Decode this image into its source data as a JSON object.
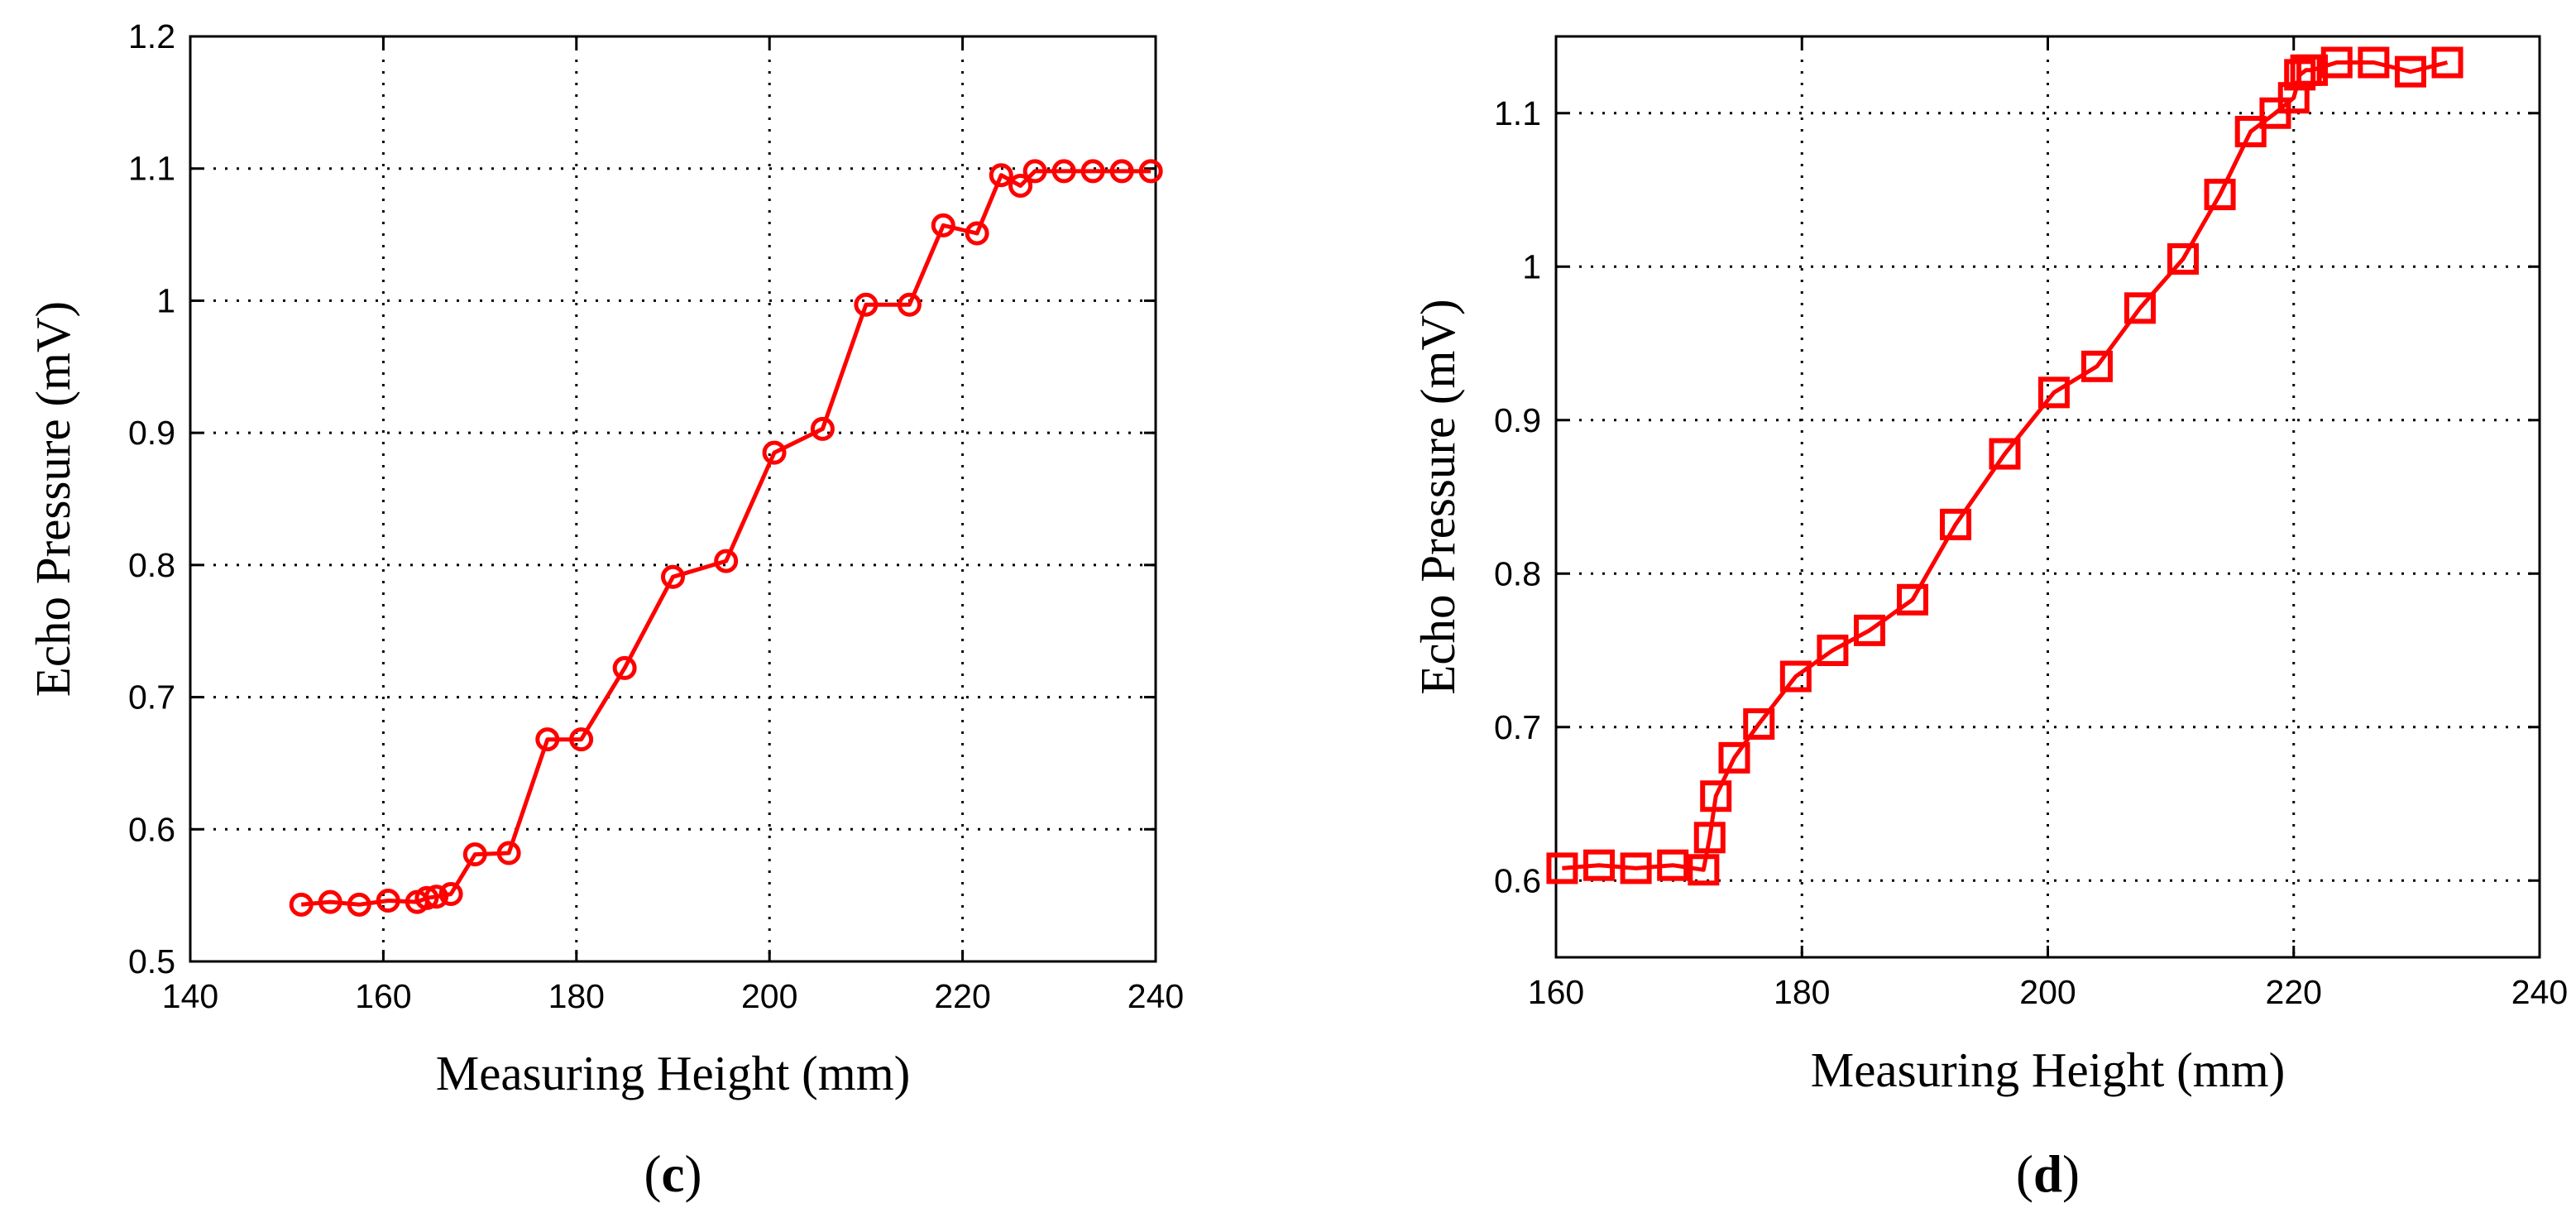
{
  "chart_data": [
    {
      "id": "c",
      "panel_label": "c",
      "type": "line",
      "marker": "circle",
      "color": "#ff0000",
      "grid": true,
      "xlabel": "Measuring Height (mm)",
      "ylabel": "Echo Pressure (mV)",
      "xlim": [
        140,
        240
      ],
      "ylim": [
        0.5,
        1.2
      ],
      "xticks": [
        140,
        160,
        180,
        200,
        220,
        240
      ],
      "xtick_labels": [
        "140",
        "160",
        "180",
        "200",
        "220",
        "240"
      ],
      "yticks": [
        0.5,
        0.6,
        0.7,
        0.8,
        0.9,
        1.0,
        1.1,
        1.2
      ],
      "ytick_labels": [
        "0.5",
        "0.6",
        "0.7",
        "0.8",
        "0.9",
        "1",
        "1.1",
        "1.2"
      ],
      "series": [
        {
          "name": "Echo Pressure",
          "x": [
            151.5,
            154.5,
            157.5,
            160.5,
            163.5,
            164.5,
            165.5,
            167,
            169.5,
            173,
            177,
            180.5,
            185,
            190,
            195.5,
            200.5,
            205.5,
            210,
            214.5,
            218,
            221.5,
            224,
            226,
            227.5,
            230.5,
            233.5,
            236.5,
            239.5
          ],
          "y": [
            0.543,
            0.545,
            0.543,
            0.546,
            0.545,
            0.548,
            0.549,
            0.551,
            0.581,
            0.582,
            0.668,
            0.668,
            0.722,
            0.791,
            0.803,
            0.885,
            0.903,
            0.997,
            0.997,
            1.057,
            1.051,
            1.095,
            1.087,
            1.098,
            1.098,
            1.098,
            1.098,
            1.098
          ]
        }
      ]
    },
    {
      "id": "d",
      "panel_label": "d",
      "type": "line",
      "marker": "square",
      "color": "#ff0000",
      "grid": true,
      "xlabel": "Measuring Height (mm)",
      "ylabel": "Echo Pressure (mV)",
      "xlim": [
        160,
        240
      ],
      "ylim": [
        0.55,
        1.15
      ],
      "xticks": [
        160,
        180,
        200,
        220,
        240
      ],
      "xtick_labels": [
        "160",
        "180",
        "200",
        "220",
        "240"
      ],
      "yticks": [
        0.6,
        0.7,
        0.8,
        0.9,
        1.0,
        1.1
      ],
      "ytick_labels": [
        "0.6",
        "0.7",
        "0.8",
        "0.9",
        "1",
        "1.1"
      ],
      "series": [
        {
          "name": "Echo Pressure",
          "x": [
            160.5,
            163.5,
            166.5,
            169.5,
            172,
            172.5,
            173,
            174.5,
            176.5,
            179.5,
            182.5,
            185.5,
            189,
            192.5,
            196.5,
            200.5,
            204,
            207.5,
            211,
            214,
            216.5,
            218.5,
            220,
            220.5,
            221,
            221.5,
            223.5,
            226.5,
            229.5,
            232.5
          ],
          "y": [
            0.608,
            0.61,
            0.608,
            0.61,
            0.607,
            0.628,
            0.655,
            0.68,
            0.702,
            0.733,
            0.75,
            0.763,
            0.783,
            0.832,
            0.878,
            0.918,
            0.935,
            0.973,
            1.005,
            1.047,
            1.088,
            1.1,
            1.11,
            1.125,
            1.128,
            1.128,
            1.133,
            1.133,
            1.127,
            1.133
          ]
        }
      ]
    }
  ]
}
